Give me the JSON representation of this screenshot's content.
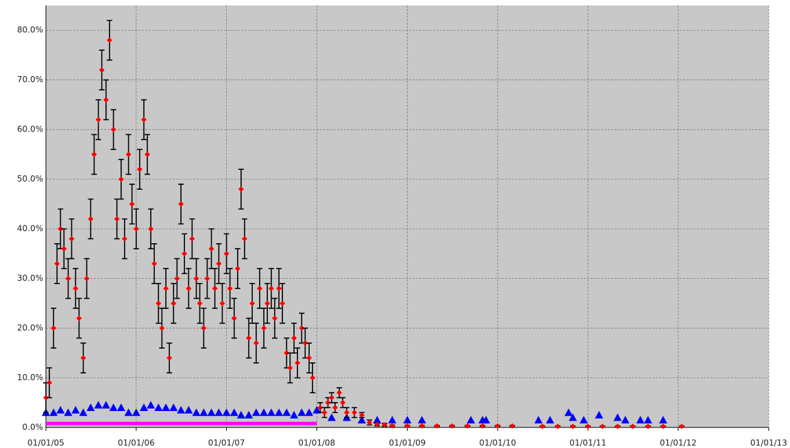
{
  "chart_data": {
    "type": "scatter",
    "xlim": [
      "01/01/05",
      "01/01/13"
    ],
    "xticks": [
      "01/01/05",
      "01/01/06",
      "01/01/07",
      "01/01/08",
      "01/01/09",
      "01/01/10",
      "01/01/11",
      "01/01/12",
      "01/01/13"
    ],
    "ylim": [
      0,
      85
    ],
    "yticks": [
      {
        "value": 0,
        "label": "0.0%"
      },
      {
        "value": 10,
        "label": "10.0%"
      },
      {
        "value": 20,
        "label": "20.0%"
      },
      {
        "value": 30,
        "label": "30.0%"
      },
      {
        "value": 40,
        "label": "40.0%"
      },
      {
        "value": 50,
        "label": "50.0%"
      },
      {
        "value": 60,
        "label": "60.0%"
      },
      {
        "value": 70,
        "label": "70.0%"
      },
      {
        "value": 80,
        "label": "80.0%"
      }
    ],
    "grid": true,
    "series": [
      {
        "color": "#0000ff",
        "marker": "triangle",
        "x": [
          "01/01/05",
          "01/02/05",
          "01/03/05",
          "01/04/05",
          "01/05/05",
          "01/06/05",
          "01/07/05",
          "01/08/05",
          "01/09/05",
          "01/10/05",
          "01/11/05",
          "01/12/05",
          "01/01/06",
          "01/02/06",
          "01/03/06",
          "01/04/06",
          "01/05/06",
          "01/06/06",
          "01/07/06",
          "01/08/06",
          "01/09/06",
          "01/10/06",
          "01/11/06",
          "01/12/06",
          "01/01/07",
          "01/02/07",
          "01/03/07",
          "01/04/07",
          "01/05/07",
          "01/06/07",
          "01/07/07",
          "01/08/07",
          "01/09/07",
          "01/10/07",
          "01/11/07",
          "01/12/07",
          "01/01/08",
          "01/03/08",
          "01/05/08",
          "01/07/08",
          "01/09/08",
          "01/11/08",
          "01/01/09",
          "01/03/09",
          "15/09/09",
          "01/11/09",
          "15/11/09",
          "15/06/10",
          "01/08/10",
          "15/10/10",
          "01/11/10",
          "15/12/10",
          "15/02/11",
          "01/05/11",
          "01/06/11",
          "01/08/11",
          "01/09/11",
          "01/11/11"
        ],
        "values": [
          3,
          3,
          3.5,
          3,
          3.5,
          3,
          4,
          4.5,
          4.5,
          4,
          4,
          3,
          3,
          4,
          4.5,
          4,
          4,
          4,
          3.5,
          3.5,
          3,
          3,
          3,
          3,
          3,
          3,
          2.5,
          2.5,
          3,
          3,
          3,
          3,
          3,
          2.5,
          3,
          3,
          3.5,
          2,
          2,
          1.5,
          1.5,
          1.5,
          1.5,
          1.5,
          1.5,
          1.5,
          1.5,
          1.5,
          1.5,
          3,
          2,
          1.5,
          2.5,
          2,
          1.5,
          1.5,
          1.5,
          1.5
        ]
      },
      {
        "color": "#ff00ff",
        "marker": "line",
        "x": [
          "01/01/05",
          "01/01/08"
        ],
        "values": [
          0.8,
          0.8
        ]
      },
      {
        "color": "#ff0000",
        "marker": "diamond",
        "error_color": "#000000",
        "x": [
          "01/01/05",
          "15/01/05",
          "01/02/05",
          "15/02/05",
          "01/03/05",
          "15/03/05",
          "01/04/05",
          "15/04/05",
          "01/05/05",
          "15/05/05",
          "01/06/05",
          "15/06/05",
          "01/07/05",
          "15/07/05",
          "01/08/05",
          "15/08/05",
          "01/09/05",
          "15/09/05",
          "01/10/05",
          "15/10/05",
          "01/11/05",
          "15/11/05",
          "01/12/05",
          "15/12/05",
          "01/01/06",
          "15/01/06",
          "01/02/06",
          "15/02/06",
          "01/03/06",
          "15/03/06",
          "01/04/06",
          "15/04/06",
          "01/05/06",
          "15/05/06",
          "01/06/06",
          "15/06/06",
          "01/07/06",
          "15/07/06",
          "01/08/06",
          "15/08/06",
          "01/09/06",
          "15/09/06",
          "01/10/06",
          "15/10/06",
          "01/11/06",
          "15/11/06",
          "01/12/06",
          "15/12/06",
          "01/01/07",
          "15/01/07",
          "01/02/07",
          "15/02/07",
          "01/03/07",
          "15/03/07",
          "01/04/07",
          "15/04/07",
          "01/05/07",
          "15/05/07",
          "01/06/07",
          "15/06/07",
          "01/07/07",
          "15/07/07",
          "01/08/07",
          "15/08/07",
          "01/09/07",
          "15/09/07",
          "01/10/07",
          "15/10/07",
          "01/11/07",
          "15/11/07",
          "01/12/07",
          "15/12/07",
          "15/01/08",
          "01/02/08",
          "15/02/08",
          "01/03/08",
          "15/03/08",
          "01/04/08",
          "15/04/08",
          "01/05/08",
          "01/06/08",
          "01/07/08",
          "01/08/08",
          "01/09/08",
          "01/10/08",
          "01/11/08",
          "01/01/09",
          "01/03/09",
          "01/05/09",
          "01/07/09",
          "01/09/09",
          "01/11/09",
          "01/01/10",
          "01/03/10",
          "01/07/10",
          "01/09/10",
          "01/11/10",
          "01/01/11",
          "01/03/11",
          "01/05/11",
          "01/07/11",
          "01/09/11",
          "01/11/11",
          "15/01/12"
        ],
        "values": [
          6,
          9,
          20,
          33,
          40,
          36,
          30,
          38,
          28,
          22,
          14,
          30,
          42,
          55,
          62,
          72,
          66,
          78,
          60,
          42,
          50,
          38,
          55,
          45,
          40,
          52,
          62,
          55,
          40,
          33,
          25,
          20,
          28,
          14,
          25,
          30,
          45,
          35,
          28,
          38,
          30,
          25,
          20,
          30,
          36,
          28,
          33,
          25,
          35,
          28,
          22,
          32,
          48,
          38,
          18,
          25,
          17,
          28,
          20,
          25,
          28,
          22,
          28,
          25,
          15,
          12,
          18,
          13,
          20,
          17,
          14,
          10,
          4,
          3,
          5,
          6,
          4,
          7,
          5,
          3,
          3,
          2.5,
          1,
          0.6,
          0.5,
          0.3,
          0.3,
          0.3,
          0.3,
          0.3,
          0.3,
          0.3,
          0.3,
          0.3,
          0.2,
          0.2,
          0.2,
          0.2,
          0.2,
          0.2,
          0.2,
          0.2,
          0.2,
          0.2
        ],
        "errors": [
          3,
          3,
          4,
          4,
          4,
          4,
          4,
          4,
          4,
          4,
          3,
          4,
          4,
          4,
          4,
          4,
          4,
          4,
          4,
          4,
          4,
          4,
          4,
          4,
          4,
          4,
          4,
          4,
          4,
          4,
          4,
          4,
          4,
          3,
          4,
          4,
          4,
          4,
          4,
          4,
          4,
          4,
          4,
          4,
          4,
          4,
          4,
          4,
          4,
          4,
          4,
          4,
          4,
          4,
          4,
          4,
          4,
          4,
          4,
          4,
          4,
          4,
          4,
          4,
          3,
          3,
          3,
          3,
          3,
          3,
          3,
          3,
          1,
          1,
          1,
          1,
          1,
          1,
          1,
          1,
          1,
          0.5,
          0.5,
          0.3,
          0.3,
          0.2,
          0.1,
          0.1,
          0.1,
          0.1,
          0.1,
          0.1,
          0.1,
          0.1,
          0.1,
          0.1,
          0.1,
          0.1,
          0.1,
          0.1,
          0.1,
          0.1,
          0.1,
          0.1
        ]
      }
    ]
  }
}
